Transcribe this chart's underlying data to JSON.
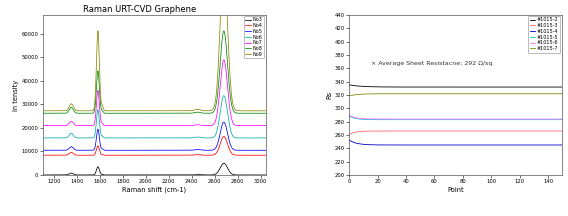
{
  "raman_title": "Raman URT-CVD Graphene",
  "raman_xlabel": "Raman shift (cm-1)",
  "raman_ylabel": "In tensity",
  "raman_xlim": [
    1100,
    3050
  ],
  "raman_ylim": [
    0,
    68000
  ],
  "raman_yticks": [
    0,
    10000,
    20000,
    30000,
    40000,
    50000,
    60000
  ],
  "raman_xticks": [
    1200,
    1400,
    1600,
    1800,
    2000,
    2200,
    2400,
    2600,
    2800,
    3000
  ],
  "raman_series_labels": [
    "No3",
    "No4",
    "No5",
    "No6",
    "No7",
    "No8",
    "No9"
  ],
  "raman_series_colors": [
    "#000000",
    "#ff0000",
    "#0000ff",
    "#00aaaa",
    "#ff00ff",
    "#008800",
    "#888800"
  ],
  "raman_offsets": [
    0,
    8000,
    10000,
    15000,
    20000,
    25000,
    26000
  ],
  "raman_g_peaks": [
    3500,
    4000,
    9000,
    12000,
    15000,
    18000,
    34000
  ],
  "raman_2d_peaks": [
    5000,
    8000,
    12000,
    18000,
    28000,
    35000,
    62000
  ],
  "raman_d_peaks": [
    800,
    1200,
    1500,
    2000,
    1800,
    2500,
    3000
  ],
  "rs_xlabel": "Point",
  "rs_ylabel": "Rs",
  "rs_xlim": [
    0,
    150
  ],
  "rs_ylim": [
    200,
    440
  ],
  "rs_yticks": [
    200,
    220,
    240,
    260,
    280,
    300,
    320,
    340,
    360,
    380,
    400,
    420,
    440
  ],
  "rs_xticks": [
    0,
    20,
    40,
    60,
    80,
    100,
    120,
    140
  ],
  "rs_series_labels": [
    "#1015-2",
    "#1015-3",
    "#1015-4",
    "#1015-5",
    "#1015-6",
    "#1015-7"
  ],
  "rs_series_colors": [
    "#000000",
    "#ff6666",
    "#0000cc",
    "#00cccc",
    "#ff66ff",
    "#888800"
  ],
  "rs_values": [
    332,
    266,
    245,
    283,
    284,
    322
  ],
  "rs_annotation": "× Average Sheet Resistacne: 292 Ω/sq",
  "background_color": "#ffffff"
}
